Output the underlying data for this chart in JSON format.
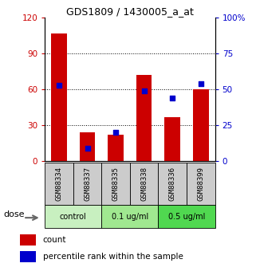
{
  "title": "GDS1809 / 1430005_a_at",
  "samples": [
    "GSM88334",
    "GSM88337",
    "GSM88335",
    "GSM88338",
    "GSM88336",
    "GSM88399"
  ],
  "count_values": [
    107,
    24,
    22,
    72,
    37,
    60
  ],
  "percentile_values": [
    53,
    9,
    20,
    49,
    44,
    54
  ],
  "left_ylim": [
    0,
    120
  ],
  "right_ylim": [
    0,
    100
  ],
  "left_yticks": [
    0,
    30,
    60,
    90
  ],
  "left_yticklabels": [
    "0",
    "30",
    "60",
    "90"
  ],
  "right_yticks": [
    0,
    25,
    50,
    75,
    100
  ],
  "right_yticklabels": [
    "0",
    "25",
    "50",
    "75",
    "100%"
  ],
  "bar_color": "#cc0000",
  "dot_color": "#0000cc",
  "tick_label_color_left": "#cc0000",
  "tick_label_color_right": "#0000cc",
  "legend_count_label": "count",
  "legend_pct_label": "percentile rank within the sample",
  "group_info": [
    {
      "start": 0,
      "end": 1,
      "label": "control",
      "color": "#c8f0c0"
    },
    {
      "start": 2,
      "end": 3,
      "label": "0.1 ug/ml",
      "color": "#a0e890"
    },
    {
      "start": 4,
      "end": 5,
      "label": "0.5 ug/ml",
      "color": "#50d850"
    }
  ],
  "sample_box_color": "#cccccc",
  "dose_label": "dose",
  "grid_dotted_at": [
    30,
    60,
    90
  ],
  "top_120_label": "120"
}
